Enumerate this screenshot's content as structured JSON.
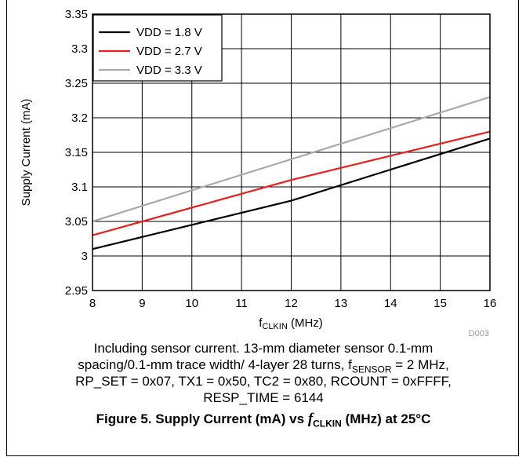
{
  "chart_data": {
    "type": "line",
    "xlabel_main": "f",
    "xlabel_sub": "CLKIN",
    "xlabel_unit": " (MHz)",
    "ylabel": "Supply Current (mA)",
    "xlim": [
      8,
      16
    ],
    "ylim": [
      2.95,
      3.35
    ],
    "xticks": [
      "8",
      "9",
      "10",
      "11",
      "12",
      "13",
      "14",
      "15",
      "16"
    ],
    "yticks": [
      "2.95",
      "3",
      "3.05",
      "3.1",
      "3.15",
      "3.2",
      "3.25",
      "3.3",
      "3.35"
    ],
    "grid": true,
    "legend_position": "top-left",
    "series": [
      {
        "name": "VDD = 1.8 V",
        "color": "#000000",
        "x": [
          8,
          12,
          16
        ],
        "y": [
          3.01,
          3.08,
          3.17
        ]
      },
      {
        "name": "VDD = 2.7 V",
        "color": "#e8201c",
        "x": [
          8,
          12,
          16
        ],
        "y": [
          3.03,
          3.11,
          3.18
        ]
      },
      {
        "name": "VDD = 3.3 V",
        "color": "#a9a9a9",
        "x": [
          8,
          16
        ],
        "y": [
          3.05,
          3.23
        ]
      }
    ],
    "code_label": "D003"
  },
  "note": {
    "line1": "Including sensor current. 13-mm diameter sensor 0.1-mm",
    "line2_pre": "spacing/0.1-mm trace width/ 4-layer 28 turns, f",
    "line2_sub": "SENSOR",
    "line2_post": " = 2 MHz,",
    "line3": "RP_SET = 0x07, TX1 = 0x50, TC2 = 0x80, RCOUNT = 0xFFFF,",
    "line4": "RESP_TIME = 6144"
  },
  "caption": {
    "pre": "Figure 5. Supply Current (mA) vs ",
    "f": "f",
    "sub": "CLKIN",
    "post": " (MHz) at 25°C"
  }
}
